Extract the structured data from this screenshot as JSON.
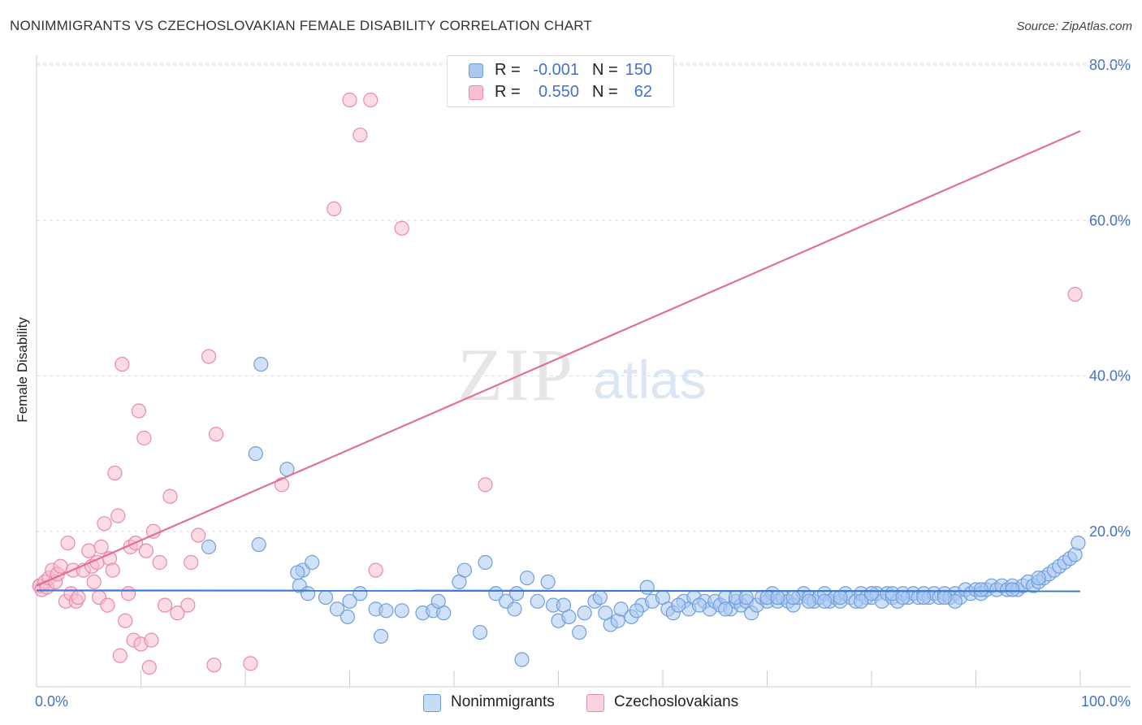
{
  "title": "NONIMMIGRANTS VS CZECHOSLOVAKIAN FEMALE DISABILITY CORRELATION CHART",
  "source": "Source: ZipAtlas.com",
  "watermark": {
    "zip": "ZIP",
    "atlas": "atlas"
  },
  "colors": {
    "blue_fill": "#a9c8f2",
    "blue_stroke": "#6f9fdb",
    "blue_line": "#3f78cc",
    "pink_fill": "#f8c0d0",
    "pink_stroke": "#e98aa8",
    "pink_line": "#e0709a",
    "axis_text": "#4472c4",
    "grid": "#dddddd"
  },
  "legend_top": {
    "rows": [
      {
        "r_label": "R =",
        "r_value": "-0.001",
        "n_label": "N =",
        "n_value": "150",
        "series": "blue"
      },
      {
        "r_label": "R =",
        "r_value": "0.550",
        "n_label": "N =",
        "n_value": "62",
        "series": "pink"
      }
    ]
  },
  "legend_bottom": {
    "items": [
      {
        "label": "Nonimmigrants",
        "series": "blue"
      },
      {
        "label": "Czechoslovakians",
        "series": "pink"
      }
    ]
  },
  "chart_data": {
    "type": "scatter",
    "title": "NONIMMIGRANTS VS CZECHOSLOVAKIAN FEMALE DISABILITY CORRELATION CHART",
    "xlabel": "",
    "ylabel": "Female Disability",
    "xlim": [
      0,
      100
    ],
    "ylim": [
      0,
      80
    ],
    "x_tick_labels": [
      "0.0%",
      "100.0%"
    ],
    "y_ticks": [
      20,
      40,
      60,
      80
    ],
    "y_tick_labels": [
      "20.0%",
      "40.0%",
      "60.0%",
      "80.0%"
    ],
    "grid": true,
    "series": [
      {
        "name": "Nonimmigrants",
        "color": "blue",
        "r": "-0.001",
        "n": "150",
        "trend": {
          "x": [
            0,
            100
          ],
          "y": [
            12.4,
            12.3
          ]
        },
        "points": [
          [
            0.3,
            13.0
          ],
          [
            21.5,
            41.5
          ],
          [
            21.0,
            30.0
          ],
          [
            24.0,
            28.0
          ],
          [
            16.5,
            18.0
          ],
          [
            21.3,
            18.3
          ],
          [
            25.5,
            15.0
          ],
          [
            26.4,
            16.0
          ],
          [
            25.0,
            14.7
          ],
          [
            25.2,
            13.0
          ],
          [
            26.0,
            12.0
          ],
          [
            27.7,
            11.5
          ],
          [
            28.8,
            10.0
          ],
          [
            29.8,
            9.0
          ],
          [
            33.0,
            6.5
          ],
          [
            31.0,
            12.0
          ],
          [
            30.0,
            11.0
          ],
          [
            32.5,
            10.0
          ],
          [
            33.5,
            9.8
          ],
          [
            35.0,
            9.8
          ],
          [
            37.0,
            9.5
          ],
          [
            38.0,
            9.8
          ],
          [
            39.0,
            9.5
          ],
          [
            38.5,
            11.0
          ],
          [
            40.5,
            13.5
          ],
          [
            41.0,
            15.0
          ],
          [
            42.5,
            7.0
          ],
          [
            43.0,
            16.0
          ],
          [
            44.0,
            12.0
          ],
          [
            45.0,
            11.0
          ],
          [
            45.8,
            10.0
          ],
          [
            46.5,
            3.5
          ],
          [
            47.0,
            14.0
          ],
          [
            48.0,
            11.0
          ],
          [
            49.0,
            13.5
          ],
          [
            49.5,
            10.5
          ],
          [
            50.0,
            8.5
          ],
          [
            51.0,
            9.0
          ],
          [
            52.0,
            7.0
          ],
          [
            52.5,
            9.5
          ],
          [
            53.5,
            11.0
          ],
          [
            54.0,
            11.5
          ],
          [
            55.0,
            8.0
          ],
          [
            55.7,
            8.5
          ],
          [
            56.0,
            10.0
          ],
          [
            57.0,
            9.0
          ],
          [
            58.0,
            10.5
          ],
          [
            58.5,
            12.8
          ],
          [
            59.0,
            11.0
          ],
          [
            60.0,
            11.5
          ],
          [
            60.5,
            10.0
          ],
          [
            61.0,
            9.5
          ],
          [
            62.0,
            11.0
          ],
          [
            62.5,
            10.0
          ],
          [
            63.0,
            11.5
          ],
          [
            64.0,
            11.0
          ],
          [
            64.5,
            10.0
          ],
          [
            65.0,
            11.0
          ],
          [
            65.5,
            10.5
          ],
          [
            66.0,
            11.5
          ],
          [
            66.5,
            10.0
          ],
          [
            67.0,
            11.0
          ],
          [
            67.5,
            10.5
          ],
          [
            68.0,
            11.0
          ],
          [
            68.5,
            9.5
          ],
          [
            69.0,
            10.5
          ],
          [
            69.5,
            11.5
          ],
          [
            70.0,
            11.0
          ],
          [
            70.5,
            12.0
          ],
          [
            71.0,
            11.0
          ],
          [
            71.5,
            11.5
          ],
          [
            72.0,
            11.0
          ],
          [
            72.5,
            10.5
          ],
          [
            73.0,
            11.5
          ],
          [
            73.5,
            12.0
          ],
          [
            74.0,
            11.5
          ],
          [
            74.5,
            11.0
          ],
          [
            75.0,
            11.5
          ],
          [
            75.5,
            12.0
          ],
          [
            76.0,
            11.0
          ],
          [
            76.5,
            11.5
          ],
          [
            77.0,
            11.0
          ],
          [
            77.5,
            12.0
          ],
          [
            78.0,
            11.5
          ],
          [
            78.5,
            11.0
          ],
          [
            79.0,
            12.0
          ],
          [
            79.5,
            11.5
          ],
          [
            80.0,
            11.5
          ],
          [
            80.5,
            12.0
          ],
          [
            81.0,
            11.0
          ],
          [
            81.5,
            12.0
          ],
          [
            82.0,
            11.5
          ],
          [
            82.5,
            11.0
          ],
          [
            83.0,
            12.0
          ],
          [
            83.5,
            11.5
          ],
          [
            84.0,
            12.0
          ],
          [
            84.5,
            11.5
          ],
          [
            85.0,
            12.0
          ],
          [
            85.5,
            11.5
          ],
          [
            86.0,
            12.0
          ],
          [
            86.5,
            11.5
          ],
          [
            87.0,
            12.0
          ],
          [
            87.5,
            11.5
          ],
          [
            88.0,
            12.0
          ],
          [
            88.5,
            11.5
          ],
          [
            89.0,
            12.5
          ],
          [
            89.5,
            12.0
          ],
          [
            90.0,
            12.5
          ],
          [
            90.5,
            12.0
          ],
          [
            91.0,
            12.5
          ],
          [
            91.5,
            13.0
          ],
          [
            92.0,
            12.5
          ],
          [
            92.5,
            13.0
          ],
          [
            93.0,
            12.5
          ],
          [
            93.5,
            13.0
          ],
          [
            94.0,
            12.5
          ],
          [
            94.5,
            13.0
          ],
          [
            95.0,
            13.5
          ],
          [
            95.5,
            13.0
          ],
          [
            96.0,
            13.5
          ],
          [
            96.5,
            14.0
          ],
          [
            97.0,
            14.5
          ],
          [
            97.5,
            15.0
          ],
          [
            98.0,
            15.5
          ],
          [
            98.5,
            16.0
          ],
          [
            99.0,
            16.5
          ],
          [
            99.5,
            17.0
          ],
          [
            99.8,
            18.5
          ],
          [
            67.0,
            11.5
          ],
          [
            70.0,
            11.5
          ],
          [
            72.5,
            11.5
          ],
          [
            75.5,
            11.0
          ],
          [
            79.0,
            11.0
          ],
          [
            82.0,
            12.0
          ],
          [
            85.0,
            11.5
          ],
          [
            88.0,
            11.0
          ],
          [
            90.5,
            12.5
          ],
          [
            93.5,
            12.5
          ],
          [
            96.0,
            14.0
          ],
          [
            46.0,
            12.0
          ],
          [
            50.5,
            10.5
          ],
          [
            54.5,
            9.5
          ],
          [
            57.5,
            9.8
          ],
          [
            61.5,
            10.5
          ],
          [
            63.5,
            10.5
          ],
          [
            66.0,
            10.0
          ],
          [
            68.0,
            11.5
          ],
          [
            71.0,
            11.5
          ],
          [
            74.0,
            11.0
          ],
          [
            77.0,
            11.5
          ],
          [
            80.0,
            12.0
          ],
          [
            83.0,
            11.5
          ],
          [
            87.0,
            11.5
          ]
        ]
      },
      {
        "name": "Czechoslovakians",
        "color": "pink",
        "r": "0.550",
        "n": "62",
        "trend": {
          "x": [
            0,
            100
          ],
          "y": [
            13.0,
            71.5
          ]
        },
        "points": [
          [
            0.3,
            13.0
          ],
          [
            0.5,
            12.5
          ],
          [
            0.8,
            13.5
          ],
          [
            1.0,
            12.8
          ],
          [
            1.2,
            14.0
          ],
          [
            1.5,
            15.0
          ],
          [
            1.8,
            13.5
          ],
          [
            2.0,
            14.5
          ],
          [
            2.3,
            15.5
          ],
          [
            2.8,
            11.0
          ],
          [
            3.0,
            18.5
          ],
          [
            3.3,
            12.0
          ],
          [
            3.5,
            15.0
          ],
          [
            3.8,
            11.0
          ],
          [
            4.0,
            11.5
          ],
          [
            4.5,
            15.0
          ],
          [
            5.0,
            17.5
          ],
          [
            5.3,
            15.5
          ],
          [
            5.5,
            13.5
          ],
          [
            5.8,
            16.0
          ],
          [
            6.0,
            11.5
          ],
          [
            6.2,
            18.0
          ],
          [
            6.5,
            21.0
          ],
          [
            6.8,
            10.5
          ],
          [
            7.0,
            16.5
          ],
          [
            7.3,
            15.0
          ],
          [
            7.5,
            27.5
          ],
          [
            7.8,
            22.0
          ],
          [
            8.0,
            4.0
          ],
          [
            8.2,
            41.5
          ],
          [
            8.5,
            8.5
          ],
          [
            8.8,
            12.0
          ],
          [
            9.0,
            18.0
          ],
          [
            9.3,
            6.0
          ],
          [
            9.5,
            18.5
          ],
          [
            9.8,
            35.5
          ],
          [
            10.0,
            5.5
          ],
          [
            10.3,
            32.0
          ],
          [
            10.5,
            17.5
          ],
          [
            10.8,
            2.5
          ],
          [
            11.0,
            6.0
          ],
          [
            11.2,
            20.0
          ],
          [
            11.8,
            16.0
          ],
          [
            12.3,
            10.5
          ],
          [
            12.8,
            24.5
          ],
          [
            13.5,
            9.5
          ],
          [
            14.5,
            10.5
          ],
          [
            14.8,
            16.0
          ],
          [
            15.5,
            19.5
          ],
          [
            16.5,
            42.5
          ],
          [
            17.0,
            2.8
          ],
          [
            17.2,
            32.5
          ],
          [
            20.5,
            3.0
          ],
          [
            23.5,
            26.0
          ],
          [
            28.5,
            61.5
          ],
          [
            30.0,
            75.5
          ],
          [
            31.0,
            71.0
          ],
          [
            32.0,
            75.5
          ],
          [
            32.5,
            15.0
          ],
          [
            35.0,
            59.0
          ],
          [
            43.0,
            26.0
          ],
          [
            99.5,
            50.5
          ]
        ]
      }
    ]
  }
}
